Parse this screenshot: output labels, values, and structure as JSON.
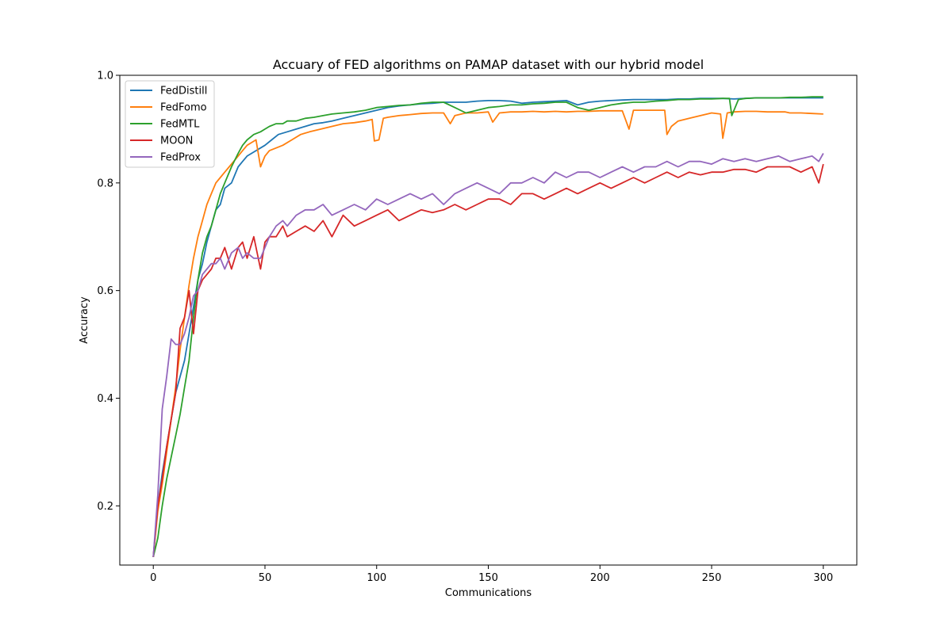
{
  "chart_data": {
    "type": "line",
    "title": "Accuary of  FED algorithms  on PAMAP dataset with our hybrid model",
    "xlabel": "Communications",
    "ylabel": "Accuracy",
    "xlim": [
      -15,
      315
    ],
    "ylim": [
      0.09,
      1.0
    ],
    "xticks": [
      0,
      50,
      100,
      150,
      200,
      250,
      300
    ],
    "yticks": [
      0.2,
      0.4,
      0.6,
      0.8,
      1.0
    ],
    "ytick_labels": [
      "0.2",
      "0.4",
      "0.6",
      "0.8",
      "1.0"
    ],
    "legend_position": "upper-left",
    "grid": false,
    "series": [
      {
        "name": "FedDistill",
        "color": "#1f77b4",
        "x": [
          0,
          2,
          4,
          6,
          8,
          10,
          12,
          14,
          16,
          18,
          20,
          22,
          24,
          26,
          28,
          30,
          32,
          35,
          38,
          40,
          42,
          44,
          46,
          48,
          50,
          53,
          56,
          60,
          64,
          68,
          72,
          76,
          80,
          85,
          90,
          95,
          100,
          105,
          110,
          115,
          120,
          125,
          130,
          135,
          140,
          145,
          150,
          155,
          160,
          165,
          170,
          175,
          180,
          185,
          190,
          195,
          200,
          205,
          210,
          215,
          220,
          225,
          230,
          235,
          240,
          245,
          250,
          255,
          260,
          265,
          270,
          275,
          280,
          285,
          290,
          295,
          300
        ],
        "y": [
          0.105,
          0.2,
          0.26,
          0.31,
          0.36,
          0.41,
          0.44,
          0.47,
          0.52,
          0.57,
          0.62,
          0.65,
          0.69,
          0.72,
          0.75,
          0.76,
          0.79,
          0.8,
          0.83,
          0.84,
          0.85,
          0.855,
          0.86,
          0.865,
          0.87,
          0.88,
          0.89,
          0.895,
          0.9,
          0.905,
          0.91,
          0.912,
          0.915,
          0.92,
          0.925,
          0.93,
          0.935,
          0.94,
          0.943,
          0.945,
          0.947,
          0.948,
          0.95,
          0.95,
          0.95,
          0.952,
          0.953,
          0.953,
          0.952,
          0.948,
          0.95,
          0.951,
          0.952,
          0.953,
          0.945,
          0.95,
          0.952,
          0.953,
          0.954,
          0.955,
          0.955,
          0.955,
          0.955,
          0.956,
          0.956,
          0.957,
          0.957,
          0.957,
          0.956,
          0.957,
          0.958,
          0.958,
          0.958,
          0.958,
          0.958,
          0.958,
          0.958
        ]
      },
      {
        "name": "FedFomo",
        "color": "#ff7f0e",
        "x": [
          0,
          2,
          4,
          6,
          8,
          10,
          12,
          14,
          16,
          18,
          20,
          22,
          24,
          26,
          28,
          30,
          32,
          34,
          36,
          38,
          40,
          42,
          44,
          46,
          48,
          50,
          52,
          55,
          58,
          62,
          66,
          70,
          75,
          80,
          85,
          90,
          95,
          98,
          99,
          101,
          103,
          105,
          110,
          115,
          120,
          125,
          130,
          133,
          135,
          140,
          145,
          150,
          152,
          155,
          160,
          165,
          170,
          175,
          180,
          185,
          190,
          195,
          200,
          205,
          210,
          213,
          215,
          220,
          225,
          229,
          230,
          232,
          235,
          240,
          245,
          250,
          254,
          255,
          257,
          260,
          265,
          270,
          275,
          280,
          283,
          285,
          290,
          295,
          300
        ],
        "y": [
          0.105,
          0.19,
          0.24,
          0.3,
          0.36,
          0.42,
          0.49,
          0.55,
          0.61,
          0.66,
          0.7,
          0.73,
          0.76,
          0.78,
          0.8,
          0.81,
          0.82,
          0.83,
          0.84,
          0.85,
          0.86,
          0.87,
          0.875,
          0.88,
          0.83,
          0.85,
          0.86,
          0.865,
          0.87,
          0.88,
          0.89,
          0.895,
          0.9,
          0.905,
          0.91,
          0.912,
          0.915,
          0.918,
          0.878,
          0.88,
          0.92,
          0.922,
          0.925,
          0.927,
          0.929,
          0.93,
          0.93,
          0.91,
          0.925,
          0.93,
          0.93,
          0.932,
          0.913,
          0.93,
          0.932,
          0.932,
          0.933,
          0.932,
          0.933,
          0.932,
          0.933,
          0.933,
          0.934,
          0.934,
          0.934,
          0.9,
          0.935,
          0.935,
          0.935,
          0.935,
          0.89,
          0.905,
          0.915,
          0.92,
          0.925,
          0.93,
          0.928,
          0.883,
          0.93,
          0.932,
          0.933,
          0.933,
          0.932,
          0.932,
          0.932,
          0.93,
          0.93,
          0.929,
          0.928
        ]
      },
      {
        "name": "FedMTL",
        "color": "#2ca02c",
        "x": [
          0,
          2,
          4,
          6,
          8,
          10,
          12,
          14,
          16,
          18,
          20,
          22,
          24,
          26,
          28,
          30,
          32,
          35,
          38,
          40,
          42,
          45,
          48,
          50,
          52,
          55,
          58,
          60,
          64,
          68,
          72,
          76,
          80,
          85,
          90,
          95,
          100,
          105,
          110,
          115,
          120,
          125,
          130,
          135,
          140,
          145,
          150,
          155,
          160,
          165,
          170,
          175,
          180,
          185,
          190,
          195,
          200,
          205,
          210,
          215,
          220,
          225,
          230,
          235,
          240,
          245,
          250,
          255,
          258,
          259,
          262,
          265,
          270,
          275,
          280,
          285,
          290,
          295,
          300
        ],
        "y": [
          0.105,
          0.14,
          0.2,
          0.25,
          0.29,
          0.33,
          0.37,
          0.42,
          0.47,
          0.55,
          0.62,
          0.67,
          0.7,
          0.72,
          0.75,
          0.78,
          0.8,
          0.83,
          0.855,
          0.87,
          0.88,
          0.89,
          0.895,
          0.9,
          0.905,
          0.91,
          0.91,
          0.915,
          0.915,
          0.92,
          0.922,
          0.925,
          0.928,
          0.93,
          0.932,
          0.935,
          0.94,
          0.942,
          0.944,
          0.945,
          0.948,
          0.95,
          0.95,
          0.94,
          0.93,
          0.935,
          0.94,
          0.942,
          0.945,
          0.945,
          0.947,
          0.948,
          0.95,
          0.95,
          0.94,
          0.935,
          0.94,
          0.945,
          0.948,
          0.95,
          0.95,
          0.952,
          0.953,
          0.955,
          0.955,
          0.956,
          0.956,
          0.957,
          0.957,
          0.925,
          0.955,
          0.957,
          0.958,
          0.958,
          0.958,
          0.959,
          0.959,
          0.96,
          0.96
        ]
      },
      {
        "name": "MOON",
        "color": "#d62728",
        "x": [
          0,
          2,
          4,
          6,
          8,
          10,
          12,
          14,
          16,
          18,
          20,
          22,
          24,
          26,
          28,
          30,
          32,
          35,
          38,
          40,
          42,
          45,
          48,
          50,
          52,
          55,
          58,
          60,
          64,
          68,
          72,
          76,
          80,
          85,
          90,
          95,
          100,
          105,
          110,
          115,
          120,
          125,
          130,
          135,
          140,
          145,
          150,
          155,
          160,
          165,
          170,
          175,
          180,
          185,
          190,
          195,
          200,
          205,
          210,
          215,
          220,
          225,
          230,
          235,
          240,
          245,
          250,
          255,
          260,
          265,
          270,
          275,
          280,
          285,
          290,
          295,
          298,
          300
        ],
        "y": [
          0.105,
          0.2,
          0.25,
          0.31,
          0.36,
          0.41,
          0.53,
          0.55,
          0.6,
          0.52,
          0.6,
          0.62,
          0.63,
          0.64,
          0.66,
          0.66,
          0.68,
          0.64,
          0.68,
          0.69,
          0.66,
          0.7,
          0.64,
          0.69,
          0.7,
          0.7,
          0.72,
          0.7,
          0.71,
          0.72,
          0.71,
          0.73,
          0.7,
          0.74,
          0.72,
          0.73,
          0.74,
          0.75,
          0.73,
          0.74,
          0.75,
          0.745,
          0.75,
          0.76,
          0.75,
          0.76,
          0.77,
          0.77,
          0.76,
          0.78,
          0.78,
          0.77,
          0.78,
          0.79,
          0.78,
          0.79,
          0.8,
          0.79,
          0.8,
          0.81,
          0.8,
          0.81,
          0.82,
          0.81,
          0.82,
          0.815,
          0.82,
          0.82,
          0.825,
          0.825,
          0.82,
          0.83,
          0.83,
          0.83,
          0.82,
          0.83,
          0.8,
          0.835
        ]
      },
      {
        "name": "FedProx",
        "color": "#9467bd",
        "x": [
          0,
          2,
          4,
          6,
          8,
          10,
          12,
          14,
          16,
          18,
          20,
          22,
          24,
          26,
          28,
          30,
          32,
          35,
          38,
          40,
          42,
          45,
          48,
          50,
          52,
          55,
          58,
          60,
          64,
          68,
          72,
          76,
          80,
          85,
          90,
          95,
          100,
          105,
          110,
          115,
          120,
          125,
          130,
          135,
          140,
          145,
          150,
          155,
          160,
          165,
          170,
          175,
          180,
          185,
          190,
          195,
          200,
          205,
          210,
          215,
          220,
          225,
          230,
          235,
          240,
          245,
          250,
          255,
          260,
          265,
          270,
          275,
          280,
          285,
          290,
          295,
          298,
          300
        ],
        "y": [
          0.105,
          0.22,
          0.38,
          0.44,
          0.51,
          0.5,
          0.5,
          0.52,
          0.55,
          0.59,
          0.6,
          0.63,
          0.64,
          0.65,
          0.65,
          0.66,
          0.64,
          0.67,
          0.68,
          0.66,
          0.67,
          0.66,
          0.66,
          0.68,
          0.7,
          0.72,
          0.73,
          0.72,
          0.74,
          0.75,
          0.75,
          0.76,
          0.74,
          0.75,
          0.76,
          0.75,
          0.77,
          0.76,
          0.77,
          0.78,
          0.77,
          0.78,
          0.76,
          0.78,
          0.79,
          0.8,
          0.79,
          0.78,
          0.8,
          0.8,
          0.81,
          0.8,
          0.82,
          0.81,
          0.82,
          0.82,
          0.81,
          0.82,
          0.83,
          0.82,
          0.83,
          0.83,
          0.84,
          0.83,
          0.84,
          0.84,
          0.835,
          0.845,
          0.84,
          0.845,
          0.84,
          0.845,
          0.85,
          0.84,
          0.845,
          0.85,
          0.84,
          0.855
        ]
      }
    ]
  }
}
